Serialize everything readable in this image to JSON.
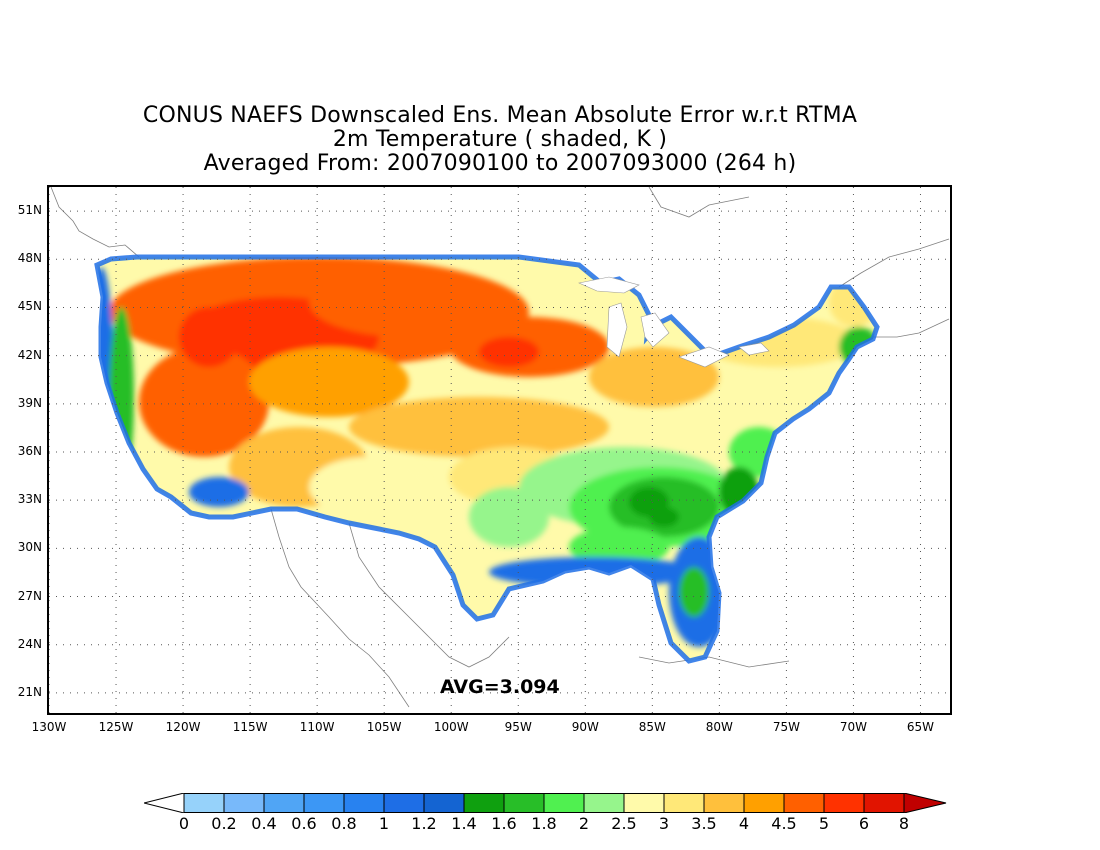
{
  "title": {
    "line1": "CONUS NAEFS Downscaled Ens. Mean Absolute Error w.r.t RTMA",
    "line2": "2m Temperature ( shaded, K )",
    "line3": "Averaged From: 2007090100 to 2007093000 (264 h)"
  },
  "map": {
    "lat_ticks": [
      "51N",
      "48N",
      "45N",
      "42N",
      "39N",
      "36N",
      "33N",
      "30N",
      "27N",
      "24N",
      "21N"
    ],
    "lon_ticks": [
      "130W",
      "125W",
      "120W",
      "115W",
      "110W",
      "105W",
      "100W",
      "95W",
      "90W",
      "85W",
      "80W",
      "75W",
      "70W",
      "65W"
    ],
    "lat_range": [
      19.5,
      52.5
    ],
    "lon_range": [
      -130,
      -62.5
    ],
    "avg_label": "AVG=3.094",
    "grid": "dotted"
  },
  "colorbar": {
    "levels": [
      "0",
      "0.2",
      "0.4",
      "0.6",
      "0.8",
      "1",
      "1.2",
      "1.4",
      "1.6",
      "1.8",
      "2",
      "2.5",
      "3",
      "3.5",
      "4",
      "4.5",
      "5",
      "6",
      "8"
    ],
    "colors": [
      "#ffffff",
      "#96d2fa",
      "#78b9fa",
      "#50a5f5",
      "#3c97f5",
      "#2882f0",
      "#1e6ee6",
      "#1464d2",
      "#0fa00f",
      "#28be28",
      "#50f050",
      "#96f58c",
      "#fffaaa",
      "#ffe878",
      "#ffc03c",
      "#ffa000",
      "#ff6000",
      "#ff3200",
      "#e11400",
      "#c00000"
    ]
  }
}
